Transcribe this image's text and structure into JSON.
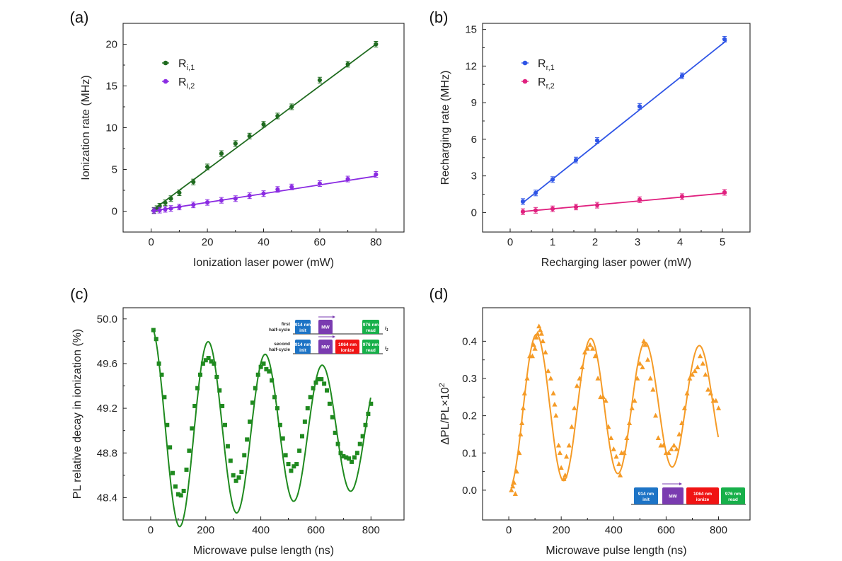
{
  "colors": {
    "green_dark": "#1f6b1f",
    "violet": "#8a2be2",
    "blue": "#2f55e6",
    "magenta": "#e0207f",
    "green_c": "#1f8a1f",
    "orange": "#f59b27",
    "inset_blue": "#1d74c6",
    "inset_purple": "#7a3bb0",
    "inset_red": "#f01414",
    "inset_green": "#17b04a"
  },
  "chart_data": [
    {
      "panel": "(a)",
      "type": "scatter",
      "xlabel": "Ionization laser power (mW)",
      "ylabel": "Ionization rate (MHz)",
      "xlim": [
        -10,
        90
      ],
      "ylim": [
        -2.5,
        22.5
      ],
      "xticks": [
        0,
        20,
        40,
        60,
        80
      ],
      "yticks": [
        0,
        5,
        10,
        15,
        20
      ],
      "legend_position": "top-left",
      "series": [
        {
          "legend_main": "R",
          "legend_sub": "i,1",
          "color": "green_dark",
          "fit": [
            [
              0,
              0
            ],
            [
              80,
              20.0
            ]
          ],
          "x": [
            1,
            2,
            3,
            5,
            7,
            10,
            15,
            20,
            25,
            30,
            35,
            40,
            45,
            50,
            60,
            70,
            80
          ],
          "y": [
            0.1,
            0.3,
            0.6,
            1.0,
            1.5,
            2.2,
            3.5,
            5.3,
            6.9,
            8.1,
            9.0,
            10.4,
            11.4,
            12.5,
            15.7,
            17.6,
            20.0
          ]
        },
        {
          "legend_main": "R",
          "legend_sub": "i,2",
          "color": "violet",
          "fit": [
            [
              0,
              0
            ],
            [
              80,
              4.2
            ]
          ],
          "x": [
            1,
            3,
            5,
            7,
            10,
            15,
            20,
            25,
            30,
            35,
            40,
            45,
            50,
            60,
            70,
            80
          ],
          "y": [
            0.05,
            0.12,
            0.22,
            0.32,
            0.5,
            0.75,
            1.05,
            1.3,
            1.5,
            1.85,
            2.1,
            2.6,
            2.9,
            3.3,
            3.85,
            4.4
          ]
        }
      ]
    },
    {
      "panel": "(b)",
      "type": "scatter",
      "xlabel": "Recharging laser power (mW)",
      "ylabel": "Recharging rate (MHz)",
      "xlim": [
        -0.65,
        5.65
      ],
      "ylim": [
        -1.6,
        15.5
      ],
      "xticks": [
        0,
        1,
        2,
        3,
        4,
        5
      ],
      "yticks": [
        0,
        3,
        6,
        9,
        12,
        15
      ],
      "legend_position": "top-left",
      "series": [
        {
          "legend_main": "R",
          "legend_sub": "r,1",
          "color": "blue",
          "fit": [
            [
              0.3,
              0.8
            ],
            [
              5.1,
              14.1
            ]
          ],
          "x": [
            0.3,
            0.6,
            1.0,
            1.55,
            2.05,
            3.05,
            4.05,
            5.05
          ],
          "y": [
            0.9,
            1.6,
            2.7,
            4.3,
            5.9,
            8.7,
            11.2,
            14.2
          ]
        },
        {
          "legend_main": "R",
          "legend_sub": "r,2",
          "color": "magenta",
          "fit": [
            [
              0.3,
              0.08
            ],
            [
              5.1,
              1.6
            ]
          ],
          "x": [
            0.3,
            0.6,
            1.0,
            1.55,
            2.05,
            3.05,
            4.05,
            5.05
          ],
          "y": [
            0.07,
            0.18,
            0.3,
            0.45,
            0.6,
            1.05,
            1.3,
            1.65
          ]
        }
      ]
    },
    {
      "panel": "(c)",
      "type": "scatter",
      "xlabel": "Microwave pulse length (ns)",
      "ylabel": "PL relative decay in ionization (%)",
      "xlim": [
        -100,
        920
      ],
      "ylim": [
        48.2,
        50.1
      ],
      "xticks": [
        0,
        200,
        400,
        600,
        800
      ],
      "yticks": [
        48.4,
        48.8,
        49.2,
        49.6,
        50.0
      ],
      "fit_model": {
        "baseline": 49.0,
        "amp0": 0.93,
        "decay_ns": 1350,
        "period_ns": 207,
        "phase": 0.08
      },
      "series": [
        {
          "color": "green_c",
          "x": [
            10,
            20,
            30,
            40,
            50,
            60,
            70,
            80,
            90,
            100,
            110,
            120,
            130,
            140,
            150,
            160,
            170,
            180,
            190,
            200,
            210,
            220,
            230,
            240,
            250,
            260,
            270,
            280,
            290,
            300,
            310,
            320,
            330,
            340,
            350,
            360,
            370,
            380,
            390,
            400,
            410,
            420,
            430,
            440,
            450,
            460,
            470,
            480,
            490,
            500,
            510,
            520,
            530,
            540,
            550,
            560,
            570,
            580,
            590,
            600,
            610,
            620,
            630,
            640,
            650,
            660,
            670,
            680,
            690,
            700,
            710,
            720,
            730,
            740,
            750,
            760,
            770,
            780,
            790,
            800
          ],
          "y": [
            49.9,
            49.82,
            49.6,
            49.5,
            49.3,
            49.05,
            48.85,
            48.62,
            48.5,
            48.43,
            48.42,
            48.46,
            48.65,
            48.82,
            49.02,
            49.22,
            49.38,
            49.5,
            49.6,
            49.63,
            49.65,
            49.62,
            49.6,
            49.48,
            49.36,
            49.22,
            49.05,
            48.86,
            48.73,
            48.6,
            48.55,
            48.58,
            48.63,
            48.78,
            48.92,
            49.08,
            49.25,
            49.38,
            49.5,
            49.57,
            49.6,
            49.55,
            49.53,
            49.45,
            49.3,
            49.2,
            49.05,
            48.93,
            48.78,
            48.7,
            48.64,
            48.68,
            48.7,
            48.82,
            48.95,
            49.08,
            49.2,
            49.3,
            49.38,
            49.43,
            49.46,
            49.46,
            49.42,
            49.36,
            49.24,
            49.12,
            48.98,
            48.88,
            48.8,
            48.77,
            48.76,
            48.75,
            48.72,
            48.76,
            48.8,
            48.88,
            48.95,
            49.05,
            49.15,
            49.24
          ]
        }
      ],
      "inset": {
        "row1_label": [
          "first",
          "half-cycle"
        ],
        "row2_label": [
          "second",
          "half-cycle"
        ],
        "pulse_init": [
          "914 nm",
          "init"
        ],
        "pulse_mw": "MW",
        "pulse_ionize": [
          "1064 nm",
          "ionize"
        ],
        "pulse_read": [
          "976 nm",
          "read"
        ],
        "row1_signal": "I",
        "row1_signal_sub": "1",
        "row2_signal": "I",
        "row2_signal_sub": "2"
      }
    },
    {
      "panel": "(d)",
      "type": "scatter",
      "xlabel": "Microwave pulse length (ns)",
      "ylabel": "ΔPL/PL×10",
      "ylabel_sup": "2",
      "xlim": [
        -100,
        920
      ],
      "ylim": [
        -0.08,
        0.49
      ],
      "xticks": [
        0,
        200,
        400,
        600,
        800
      ],
      "yticks": [
        0.0,
        0.1,
        0.2,
        0.3,
        0.4
      ],
      "fit_model": {
        "offset": 0.0,
        "slope": 0.00028,
        "amp0": 0.2,
        "decay_ns": 2600,
        "period_ns": 207,
        "phase": 0.08,
        "center": 0.215
      },
      "series": [
        {
          "color": "orange",
          "x": [
            10,
            15,
            20,
            25,
            30,
            40,
            45,
            50,
            55,
            60,
            70,
            80,
            90,
            95,
            100,
            105,
            110,
            115,
            120,
            125,
            130,
            140,
            150,
            160,
            170,
            175,
            180,
            190,
            195,
            200,
            210,
            215,
            220,
            230,
            240,
            250,
            260,
            270,
            280,
            290,
            300,
            310,
            320,
            330,
            340,
            350,
            360,
            370,
            380,
            390,
            400,
            410,
            420,
            425,
            430,
            440,
            450,
            460,
            470,
            480,
            490,
            500,
            510,
            515,
            520,
            530,
            540,
            550,
            560,
            570,
            580,
            590,
            600,
            610,
            620,
            630,
            640,
            650,
            660,
            670,
            680,
            690,
            700,
            710,
            720,
            730,
            740,
            750,
            760,
            770,
            780,
            790,
            800
          ],
          "y": [
            0.0,
            0.01,
            0.02,
            -0.01,
            0.05,
            0.1,
            0.15,
            0.18,
            0.22,
            0.26,
            0.3,
            0.36,
            0.36,
            0.39,
            0.38,
            0.41,
            0.42,
            0.44,
            0.43,
            0.42,
            0.4,
            0.37,
            0.32,
            0.3,
            0.26,
            0.23,
            0.2,
            0.12,
            0.1,
            0.06,
            0.03,
            0.04,
            0.09,
            0.12,
            0.17,
            0.22,
            0.28,
            0.3,
            0.33,
            0.37,
            0.38,
            0.39,
            0.38,
            0.36,
            0.3,
            0.25,
            0.25,
            0.24,
            0.17,
            0.14,
            0.11,
            0.09,
            0.07,
            0.04,
            0.1,
            0.1,
            0.14,
            0.18,
            0.22,
            0.24,
            0.3,
            0.34,
            0.33,
            0.4,
            0.39,
            0.35,
            0.3,
            0.27,
            0.2,
            0.14,
            0.12,
            0.12,
            0.1,
            0.1,
            0.11,
            0.12,
            0.11,
            0.15,
            0.18,
            0.22,
            0.26,
            0.3,
            0.31,
            0.32,
            0.33,
            0.36,
            0.34,
            0.31,
            0.27,
            0.26,
            0.24,
            0.24,
            0.22
          ]
        }
      ],
      "inset": {
        "pulse_init": [
          "914 nm",
          "init"
        ],
        "pulse_mw": "MW",
        "pulse_ionize": [
          "1064 nm",
          "ionize"
        ],
        "pulse_read": [
          "976 nm",
          "read"
        ]
      }
    }
  ]
}
